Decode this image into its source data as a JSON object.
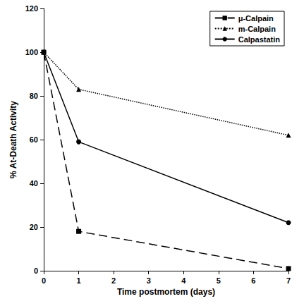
{
  "chart_data": {
    "type": "line",
    "xlabel": "Time postmortem (days)",
    "ylabel": "% At-Death Activity",
    "x": [
      0,
      1,
      7
    ],
    "series": [
      {
        "name": "μ-Calpain",
        "color": "#000000",
        "marker": "square",
        "line_style": "dashed",
        "values": [
          100,
          18,
          1
        ]
      },
      {
        "name": "m-Calpain",
        "color": "#000000",
        "marker": "triangle",
        "line_style": "dotted",
        "values": [
          100,
          83,
          62
        ]
      },
      {
        "name": "Calpastatin",
        "color": "#000000",
        "marker": "circle",
        "line_style": "solid",
        "values": [
          100,
          59,
          22
        ]
      }
    ],
    "xlim": [
      0,
      7
    ],
    "ylim": [
      0,
      120
    ],
    "xticks": [
      0,
      1,
      2,
      3,
      4,
      5,
      6,
      7
    ],
    "yticks": [
      0,
      20,
      40,
      60,
      80,
      100,
      120
    ],
    "grid": false,
    "legend": "upper right"
  }
}
